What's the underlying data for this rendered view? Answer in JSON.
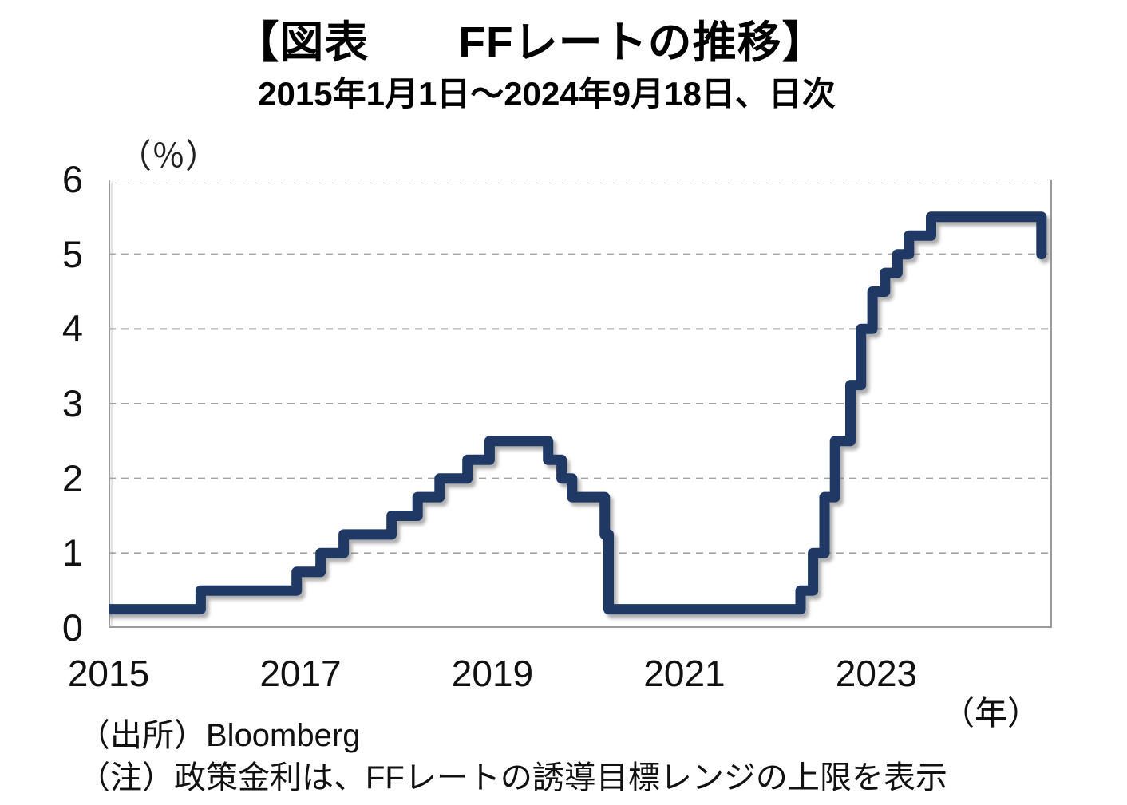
{
  "header": {
    "title": "【図表　　FFレートの推移】",
    "subtitle": "2015年1月1日～2024年9月18日、日次"
  },
  "footer": {
    "source": "（出所）Bloomberg",
    "note": "（注）政策金利は、FFレートの誘導目標レンジの上限を表示"
  },
  "chart_data": {
    "type": "line",
    "subtype": "step",
    "title": "FFレートの推移",
    "period_label": "2015年1月1日～2024年9月18日、日次",
    "y_unit": "（％）",
    "x_unit": "（年）",
    "xlim": [
      2015,
      2024.83
    ],
    "ylim": [
      0,
      6
    ],
    "x_ticks": [
      2015,
      2017,
      2019,
      2021,
      2023
    ],
    "y_ticks": [
      0,
      1,
      2,
      3,
      4,
      5,
      6
    ],
    "grid": "dashed-horizontal",
    "legend": "none",
    "line_color": "#1f3864",
    "points": [
      {
        "x": 2015.0,
        "y": 0.25
      },
      {
        "x": 2015.96,
        "y": 0.5
      },
      {
        "x": 2016.96,
        "y": 0.75
      },
      {
        "x": 2017.21,
        "y": 1.0
      },
      {
        "x": 2017.45,
        "y": 1.25
      },
      {
        "x": 2017.95,
        "y": 1.5
      },
      {
        "x": 2018.22,
        "y": 1.75
      },
      {
        "x": 2018.45,
        "y": 2.0
      },
      {
        "x": 2018.74,
        "y": 2.25
      },
      {
        "x": 2018.97,
        "y": 2.5
      },
      {
        "x": 2019.58,
        "y": 2.25
      },
      {
        "x": 2019.72,
        "y": 2.0
      },
      {
        "x": 2019.83,
        "y": 1.75
      },
      {
        "x": 2020.17,
        "y": 1.25
      },
      {
        "x": 2020.21,
        "y": 0.25
      },
      {
        "x": 2022.21,
        "y": 0.5
      },
      {
        "x": 2022.34,
        "y": 1.0
      },
      {
        "x": 2022.46,
        "y": 1.75
      },
      {
        "x": 2022.57,
        "y": 2.5
      },
      {
        "x": 2022.73,
        "y": 3.25
      },
      {
        "x": 2022.84,
        "y": 4.0
      },
      {
        "x": 2022.96,
        "y": 4.5
      },
      {
        "x": 2023.09,
        "y": 4.75
      },
      {
        "x": 2023.22,
        "y": 5.0
      },
      {
        "x": 2023.34,
        "y": 5.25
      },
      {
        "x": 2023.57,
        "y": 5.5
      },
      {
        "x": 2024.72,
        "y": 5.0
      }
    ]
  }
}
